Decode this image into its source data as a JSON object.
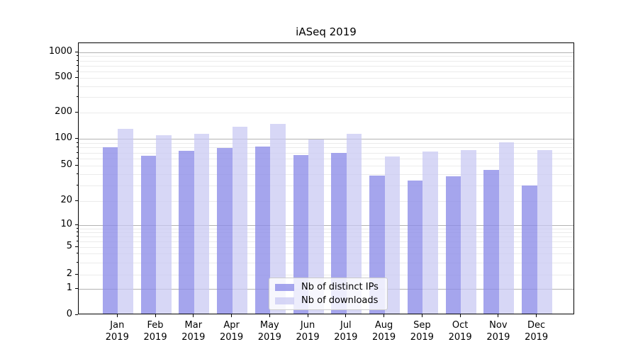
{
  "title": "iASeq 2019",
  "chart_data": {
    "type": "bar",
    "categories": [
      "Jan 2019",
      "Feb 2019",
      "Mar 2019",
      "Apr 2019",
      "May 2019",
      "Jun 2019",
      "Jul 2019",
      "Aug 2019",
      "Sep 2019",
      "Oct 2019",
      "Nov 2019",
      "Dec 2019"
    ],
    "series": [
      {
        "name": "Nb of distinct IPs",
        "color": "#8c8ce8",
        "alpha": 0.78,
        "values": [
          80,
          65,
          73,
          79,
          82,
          66,
          70,
          39,
          34,
          38,
          45,
          30
        ]
      },
      {
        "name": "Nb of downloads",
        "color": "#c8c8f2",
        "alpha": 0.72,
        "values": [
          131,
          110,
          115,
          138,
          148,
          98,
          113,
          63,
          72,
          75,
          92,
          75
        ]
      }
    ],
    "yscale": "symlog",
    "yticks": [
      0,
      1,
      2,
      5,
      10,
      20,
      50,
      100,
      200,
      500,
      1000
    ],
    "ylim": [
      0,
      1280
    ],
    "xlabel": "",
    "ylabel": "",
    "grid": true,
    "legend_position": "lower center"
  }
}
